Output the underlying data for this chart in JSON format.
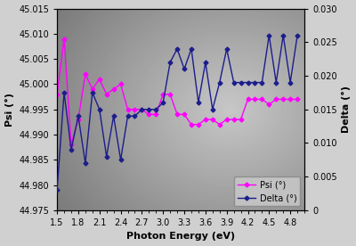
{
  "photon_energy": [
    1.5,
    1.6,
    1.7,
    1.8,
    1.9,
    2.0,
    2.1,
    2.2,
    2.3,
    2.4,
    2.5,
    2.6,
    2.7,
    2.8,
    2.9,
    3.0,
    3.1,
    3.2,
    3.3,
    3.4,
    3.5,
    3.6,
    3.7,
    3.8,
    3.9,
    4.0,
    4.1,
    4.2,
    4.3,
    4.4,
    4.5,
    4.6,
    4.7,
    4.8,
    4.9
  ],
  "psi": [
    44.998,
    45.009,
    44.988,
    44.993,
    45.002,
    44.999,
    45.001,
    44.998,
    44.999,
    45.0,
    44.995,
    44.995,
    44.995,
    44.994,
    44.994,
    44.998,
    44.998,
    44.994,
    44.994,
    44.992,
    44.992,
    44.993,
    44.993,
    44.992,
    44.993,
    44.993,
    44.993,
    44.997,
    44.997,
    44.997,
    44.996,
    44.997,
    44.997,
    44.997,
    44.997
  ],
  "delta": [
    0.003,
    0.0175,
    0.009,
    0.014,
    0.007,
    0.0175,
    0.015,
    0.008,
    0.014,
    0.0075,
    0.014,
    0.014,
    0.015,
    0.015,
    0.015,
    0.016,
    0.022,
    0.024,
    0.021,
    0.024,
    0.016,
    0.022,
    0.015,
    0.019,
    0.024,
    0.019,
    0.019,
    0.019,
    0.019,
    0.019,
    0.026,
    0.019,
    0.026,
    0.019,
    0.026
  ],
  "psi_ylim": [
    44.975,
    45.015
  ],
  "delta_ylim": [
    0,
    0.03
  ],
  "psi_yticks": [
    44.975,
    44.98,
    44.985,
    44.99,
    44.995,
    45.0,
    45.005,
    45.01,
    45.015
  ],
  "delta_yticks": [
    0,
    0.005,
    0.01,
    0.015,
    0.02,
    0.025,
    0.03
  ],
  "xticks": [
    1.5,
    1.8,
    2.1,
    2.4,
    2.7,
    3.0,
    3.3,
    3.6,
    3.9,
    4.2,
    4.5,
    4.8
  ],
  "xlim": [
    1.5,
    5.0
  ],
  "xlabel": "Photon Energy (eV)",
  "ylabel_left": "Psi (°)",
  "ylabel_right": "Delta (°)",
  "psi_color": "#FF00FF",
  "delta_color": "#1C1C8C",
  "legend_psi": "Psi (°)",
  "legend_delta": "Delta (°)"
}
